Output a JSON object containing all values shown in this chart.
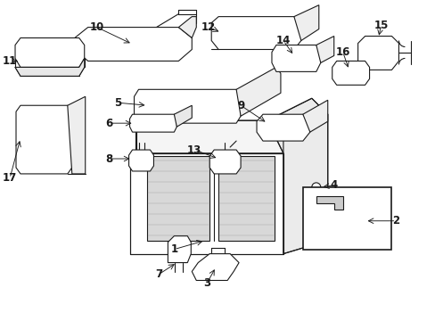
{
  "bg_color": "#ffffff",
  "line_color": "#1a1a1a",
  "label_color": "#000000",
  "fig_w": 4.89,
  "fig_h": 3.6,
  "dpi": 100,
  "lw": 0.8,
  "fontsize": 8.5
}
